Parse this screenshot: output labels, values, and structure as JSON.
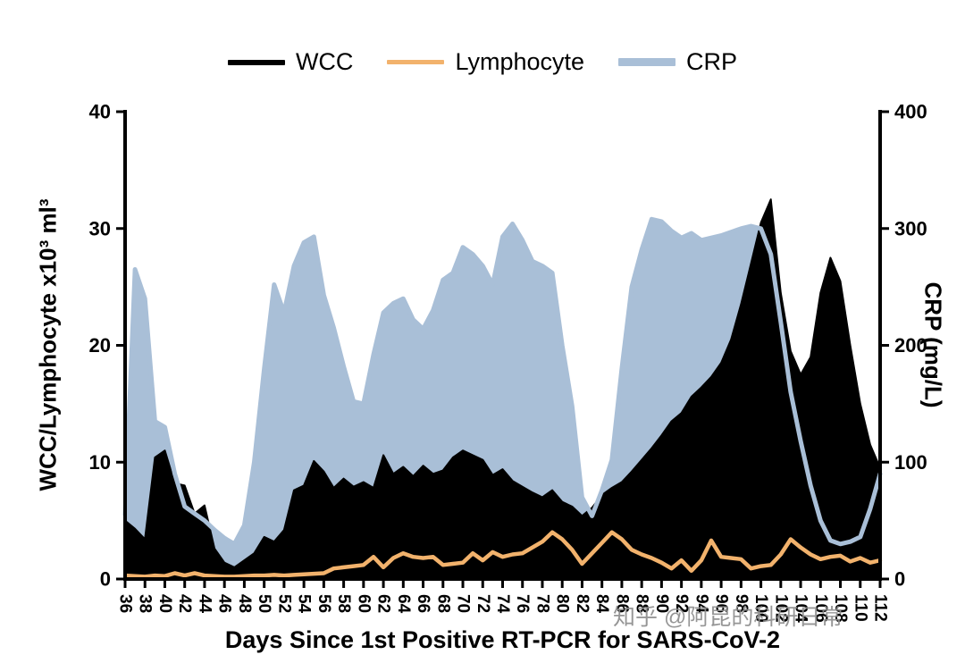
{
  "figure": {
    "background": "#ffffff",
    "watermark": "知乎 @阿昆的科研日常"
  },
  "legend": {
    "items": [
      {
        "label": "WCC",
        "color": "#000000"
      },
      {
        "label": "Lymphocyte",
        "color": "#f2b26c"
      },
      {
        "label": "CRP",
        "color": "#a9bfd7"
      }
    ]
  },
  "axes": {
    "x_title": "Days Since 1st Positive RT-PCR for SARS-CoV-2",
    "y_left_title": "WCC/Lymphocyte x10³ ml³",
    "y_right_title": "CRP (mg/L)",
    "x_ticks": [
      36,
      38,
      40,
      42,
      44,
      46,
      48,
      50,
      52,
      54,
      56,
      58,
      60,
      62,
      64,
      66,
      68,
      70,
      72,
      74,
      76,
      78,
      80,
      82,
      84,
      86,
      88,
      90,
      92,
      94,
      96,
      98,
      100,
      102,
      104,
      106,
      108,
      110,
      112
    ],
    "y_left_ticks": [
      0,
      10,
      20,
      30,
      40
    ],
    "y_right_ticks": [
      0,
      100,
      200,
      300,
      400
    ]
  },
  "chart_data": {
    "type": "area",
    "title": "",
    "xlabel": "Days Since 1st Positive RT-PCR for SARS-CoV-2",
    "ylabel_left": "WCC/Lymphocyte x10³ ml³",
    "ylabel_right": "CRP (mg/L)",
    "xlim": [
      36,
      112
    ],
    "ylim_left": [
      0,
      40
    ],
    "ylim_right": [
      0,
      400
    ],
    "legend_position": "top",
    "grid": false,
    "x": [
      36,
      37,
      38,
      39,
      40,
      41,
      42,
      43,
      44,
      45,
      46,
      47,
      48,
      49,
      50,
      51,
      52,
      53,
      54,
      55,
      56,
      57,
      58,
      59,
      60,
      61,
      62,
      63,
      64,
      65,
      66,
      67,
      68,
      69,
      70,
      71,
      72,
      73,
      74,
      75,
      76,
      77,
      78,
      79,
      80,
      81,
      82,
      83,
      84,
      85,
      86,
      87,
      88,
      89,
      90,
      91,
      92,
      93,
      94,
      95,
      96,
      97,
      98,
      99,
      100,
      101,
      102,
      103,
      104,
      105,
      106,
      107,
      108,
      109,
      110,
      111,
      112
    ],
    "series": [
      {
        "name": "WCC",
        "axis": "left",
        "style": "area",
        "color": "#000000",
        "values": [
          5.0,
          4.3,
          3.4,
          10.4,
          11.0,
          8.2,
          8.0,
          5.6,
          6.3,
          2.6,
          1.4,
          1.0,
          1.6,
          2.2,
          3.6,
          3.2,
          4.2,
          7.6,
          8.0,
          10.1,
          9.2,
          7.8,
          8.6,
          7.9,
          8.3,
          7.8,
          10.6,
          9.0,
          9.6,
          8.8,
          9.7,
          9.0,
          9.3,
          10.4,
          11.0,
          10.6,
          10.2,
          8.9,
          9.4,
          8.4,
          7.9,
          7.4,
          7.0,
          7.6,
          6.6,
          6.2,
          5.4,
          6.1,
          7.2,
          7.8,
          8.3,
          9.2,
          10.2,
          11.2,
          12.3,
          13.5,
          14.2,
          15.6,
          16.4,
          17.3,
          18.5,
          20.5,
          23.5,
          27.0,
          30.5,
          32.5,
          24.5,
          19.5,
          17.5,
          19.0,
          24.5,
          27.5,
          25.5,
          20.0,
          15.0,
          11.5,
          9.5
        ]
      },
      {
        "name": "Lymphocyte",
        "axis": "left",
        "style": "line",
        "color": "#f2b26c",
        "values": [
          0.3,
          0.25,
          0.2,
          0.3,
          0.25,
          0.5,
          0.3,
          0.5,
          0.3,
          0.25,
          0.2,
          0.2,
          0.25,
          0.3,
          0.3,
          0.35,
          0.3,
          0.35,
          0.4,
          0.45,
          0.5,
          0.9,
          1.0,
          1.1,
          1.2,
          1.9,
          1.0,
          1.8,
          2.2,
          1.9,
          1.8,
          1.9,
          1.2,
          1.3,
          1.4,
          2.2,
          1.6,
          2.3,
          1.9,
          2.1,
          2.2,
          2.7,
          3.2,
          4.0,
          3.4,
          2.5,
          1.3,
          2.2,
          3.1,
          4.0,
          3.4,
          2.5,
          2.1,
          1.8,
          1.4,
          0.9,
          1.6,
          0.7,
          1.6,
          3.3,
          1.9,
          1.8,
          1.7,
          0.9,
          1.1,
          1.2,
          2.1,
          3.4,
          2.7,
          2.1,
          1.7,
          1.9,
          2.0,
          1.5,
          1.8,
          1.4,
          1.6
        ]
      },
      {
        "name": "CRP",
        "axis": "right",
        "style": "area_with_line",
        "color": "#a9bfd7",
        "values": [
          55,
          265,
          240,
          135,
          130,
          90,
          62,
          56,
          50,
          42,
          35,
          30,
          46,
          100,
          180,
          252,
          228,
          268,
          288,
          293,
          243,
          215,
          182,
          152,
          150,
          192,
          228,
          236,
          240,
          222,
          214,
          230,
          256,
          262,
          284,
          278,
          268,
          252,
          293,
          304,
          290,
          272,
          268,
          262,
          200,
          148,
          70,
          54,
          76,
          102,
          180,
          250,
          282,
          308,
          306,
          298,
          292,
          296,
          290,
          292,
          294,
          297,
          300,
          302,
          300,
          278,
          220,
          160,
          118,
          80,
          50,
          33,
          30,
          32,
          36,
          60,
          90
        ]
      }
    ]
  }
}
